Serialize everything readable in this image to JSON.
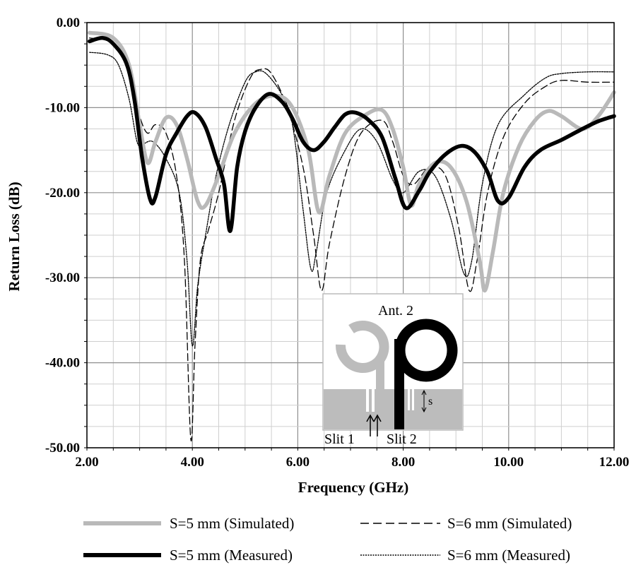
{
  "chart_data": {
    "type": "line",
    "xlabel": "Frequency (GHz)",
    "ylabel": "Return Loss (dB)",
    "xlim": [
      2.0,
      12.0
    ],
    "ylim": [
      -50.0,
      0.0
    ],
    "x_ticks": [
      "2.00",
      "4.00",
      "6.00",
      "8.00",
      "10.00",
      "12.00"
    ],
    "y_ticks": [
      "0.00",
      "-10.00",
      "-20.00",
      "-30.00",
      "-40.00",
      "-50.00"
    ],
    "grid": true,
    "legend_position": "bottom",
    "series": [
      {
        "name": "S=5 mm (Simulated)",
        "color": "#b9b9b9",
        "style": "solid-thick",
        "points": [
          [
            2.05,
            -1.2
          ],
          [
            2.5,
            -1.8
          ],
          [
            2.8,
            -5
          ],
          [
            3.0,
            -12
          ],
          [
            3.15,
            -16.5
          ],
          [
            3.3,
            -14
          ],
          [
            3.5,
            -11.2
          ],
          [
            3.7,
            -12
          ],
          [
            3.9,
            -16
          ],
          [
            4.1,
            -21
          ],
          [
            4.25,
            -21.5
          ],
          [
            4.5,
            -18
          ],
          [
            4.8,
            -13
          ],
          [
            5.2,
            -9.5
          ],
          [
            5.6,
            -8.6
          ],
          [
            5.9,
            -10
          ],
          [
            6.2,
            -15
          ],
          [
            6.4,
            -22.3
          ],
          [
            6.6,
            -18
          ],
          [
            6.9,
            -13
          ],
          [
            7.3,
            -10.8
          ],
          [
            7.6,
            -10.3
          ],
          [
            7.8,
            -12.5
          ],
          [
            8.0,
            -17
          ],
          [
            8.15,
            -21.5
          ],
          [
            8.3,
            -19
          ],
          [
            8.6,
            -16.5
          ],
          [
            8.9,
            -17
          ],
          [
            9.2,
            -21
          ],
          [
            9.45,
            -28
          ],
          [
            9.55,
            -31.5
          ],
          [
            9.7,
            -27
          ],
          [
            9.9,
            -20
          ],
          [
            10.2,
            -14.5
          ],
          [
            10.5,
            -11.5
          ],
          [
            10.75,
            -10.4
          ],
          [
            11.0,
            -11
          ],
          [
            11.4,
            -12.5
          ],
          [
            11.7,
            -11
          ],
          [
            12.0,
            -8.2
          ]
        ]
      },
      {
        "name": "S=6 mm (Simulated)",
        "color": "#000000",
        "style": "dashed",
        "points": [
          [
            2.05,
            -1.8
          ],
          [
            2.5,
            -2.5
          ],
          [
            2.8,
            -6
          ],
          [
            3.0,
            -11
          ],
          [
            3.15,
            -13
          ],
          [
            3.3,
            -12
          ],
          [
            3.5,
            -13
          ],
          [
            3.7,
            -18
          ],
          [
            3.85,
            -28
          ],
          [
            3.97,
            -49
          ],
          [
            4.05,
            -38
          ],
          [
            4.15,
            -28
          ],
          [
            4.3,
            -24.5
          ],
          [
            4.5,
            -20
          ],
          [
            4.8,
            -11.5
          ],
          [
            5.1,
            -6.5
          ],
          [
            5.3,
            -5.5
          ],
          [
            5.5,
            -6
          ],
          [
            5.8,
            -10
          ],
          [
            6.1,
            -17
          ],
          [
            6.3,
            -25
          ],
          [
            6.45,
            -31.5
          ],
          [
            6.6,
            -26
          ],
          [
            6.9,
            -18
          ],
          [
            7.2,
            -13
          ],
          [
            7.6,
            -11.5
          ],
          [
            7.8,
            -14
          ],
          [
            8.0,
            -18
          ],
          [
            8.2,
            -19
          ],
          [
            8.5,
            -17
          ],
          [
            8.8,
            -18
          ],
          [
            9.05,
            -24
          ],
          [
            9.25,
            -31.5
          ],
          [
            9.4,
            -28
          ],
          [
            9.6,
            -20
          ],
          [
            9.9,
            -13.5
          ],
          [
            10.3,
            -9.5
          ],
          [
            10.7,
            -7.5
          ],
          [
            11.0,
            -6.8
          ],
          [
            11.5,
            -7
          ],
          [
            12.0,
            -7
          ]
        ]
      },
      {
        "name": "S=5 mm (Measured)",
        "color": "#000000",
        "style": "solid-thick",
        "points": [
          [
            2.05,
            -2.2
          ],
          [
            2.3,
            -1.8
          ],
          [
            2.5,
            -2.5
          ],
          [
            2.75,
            -4.8
          ],
          [
            2.9,
            -9
          ],
          [
            3.05,
            -16
          ],
          [
            3.2,
            -20.8
          ],
          [
            3.3,
            -20.5
          ],
          [
            3.5,
            -15.5
          ],
          [
            3.7,
            -13
          ],
          [
            3.9,
            -11
          ],
          [
            4.05,
            -10.6
          ],
          [
            4.25,
            -12.3
          ],
          [
            4.45,
            -16
          ],
          [
            4.6,
            -19
          ],
          [
            4.72,
            -24.5
          ],
          [
            4.85,
            -17
          ],
          [
            5.0,
            -12.8
          ],
          [
            5.2,
            -10
          ],
          [
            5.45,
            -8.4
          ],
          [
            5.7,
            -9.3
          ],
          [
            5.9,
            -11.3
          ],
          [
            6.1,
            -14
          ],
          [
            6.3,
            -15
          ],
          [
            6.5,
            -14
          ],
          [
            6.7,
            -12.3
          ],
          [
            6.9,
            -10.8
          ],
          [
            7.1,
            -10.6
          ],
          [
            7.35,
            -11.5
          ],
          [
            7.6,
            -13.5
          ],
          [
            7.85,
            -18.3
          ],
          [
            8.05,
            -21.8
          ],
          [
            8.3,
            -19.8
          ],
          [
            8.5,
            -17.6
          ],
          [
            8.8,
            -15.5
          ],
          [
            9.1,
            -14.5
          ],
          [
            9.35,
            -15.2
          ],
          [
            9.6,
            -17.6
          ],
          [
            9.8,
            -21
          ],
          [
            10.0,
            -20.6
          ],
          [
            10.3,
            -17
          ],
          [
            10.6,
            -15
          ],
          [
            11.0,
            -13.8
          ],
          [
            11.4,
            -12.5
          ],
          [
            11.7,
            -11.6
          ],
          [
            12.0,
            -11
          ]
        ]
      },
      {
        "name": "S=6 mm (Measured)",
        "color": "#000000",
        "style": "dotted",
        "points": [
          [
            2.05,
            -3.5
          ],
          [
            2.4,
            -3.8
          ],
          [
            2.6,
            -5
          ],
          [
            2.8,
            -9
          ],
          [
            2.95,
            -14
          ],
          [
            3.05,
            -14.3
          ],
          [
            3.25,
            -14
          ],
          [
            3.5,
            -16
          ],
          [
            3.75,
            -20
          ],
          [
            3.9,
            -28
          ],
          [
            4.0,
            -38
          ],
          [
            4.1,
            -31
          ],
          [
            4.25,
            -25
          ],
          [
            4.45,
            -18
          ],
          [
            4.7,
            -12
          ],
          [
            5.0,
            -7
          ],
          [
            5.2,
            -5.8
          ],
          [
            5.4,
            -6
          ],
          [
            5.7,
            -8.5
          ],
          [
            5.9,
            -12
          ],
          [
            6.1,
            -22
          ],
          [
            6.25,
            -29
          ],
          [
            6.35,
            -27
          ],
          [
            6.55,
            -20
          ],
          [
            6.9,
            -15
          ],
          [
            7.2,
            -12.5
          ],
          [
            7.5,
            -14
          ],
          [
            7.8,
            -18.5
          ],
          [
            8.0,
            -20
          ],
          [
            8.3,
            -17.5
          ],
          [
            8.6,
            -18
          ],
          [
            8.9,
            -23
          ],
          [
            9.15,
            -29.5
          ],
          [
            9.3,
            -28
          ],
          [
            9.5,
            -19
          ],
          [
            9.8,
            -12
          ],
          [
            10.3,
            -8.5
          ],
          [
            10.7,
            -6.5
          ],
          [
            11.0,
            -6
          ],
          [
            11.5,
            -5.8
          ],
          [
            12.0,
            -5.8
          ]
        ]
      }
    ],
    "inset": {
      "title": "Ant. 2",
      "labels": [
        "Slit 1",
        "Slit 2",
        "s"
      ]
    }
  }
}
